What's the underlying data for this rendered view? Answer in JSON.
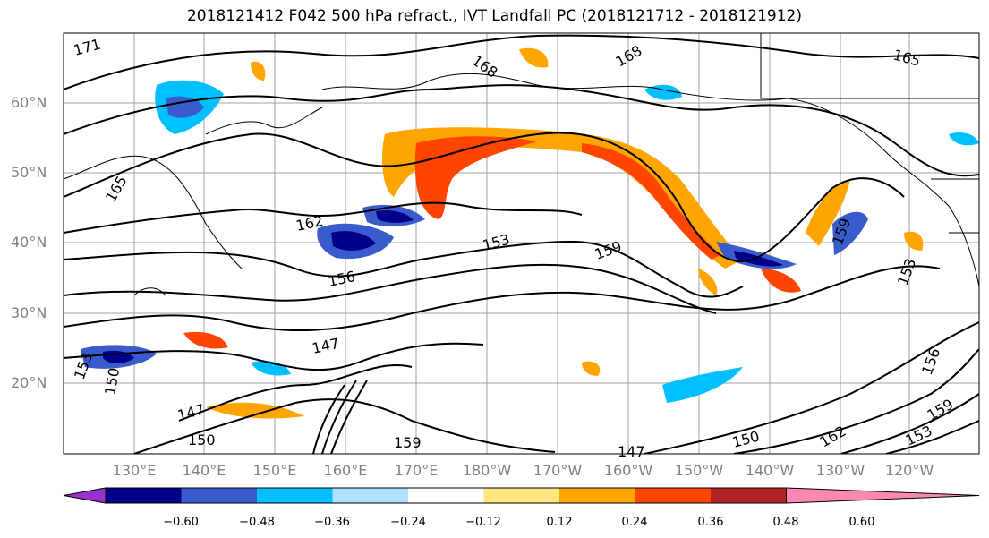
{
  "title": "2018121412 F042 500 hPa refract., IVT Landfall PC (2018121712 - 2018121912)",
  "latitude_labels": [
    "60°N",
    "50°N",
    "40°N",
    "30°N",
    "20°N"
  ],
  "longitude_labels": [
    "130°E",
    "140°E",
    "150°E",
    "160°E",
    "170°E",
    "180°W",
    "170°W",
    "160°W",
    "150°W",
    "140°W",
    "130°W",
    "120°W"
  ],
  "colorbar": {
    "ticks": [
      "−0.60",
      "−0.48",
      "−0.36",
      "−0.24",
      "−0.12",
      "0.12",
      "0.24",
      "0.36",
      "0.48",
      "0.60"
    ],
    "colors": [
      "#9932cc",
      "#00008b",
      "#3a5bcc",
      "#00bfff",
      "#b0e2ff",
      "#ffffff",
      "#ffe680",
      "#ffa500",
      "#ff4500",
      "#b22222",
      "#ff88b0"
    ]
  },
  "contour_labels": [
    "171",
    "168",
    "168",
    "165",
    "165",
    "162",
    "159",
    "159",
    "156",
    "156",
    "153",
    "153",
    "153",
    "150",
    "150",
    "147",
    "147",
    "147",
    "159",
    "159",
    "162",
    "150",
    "153"
  ]
}
